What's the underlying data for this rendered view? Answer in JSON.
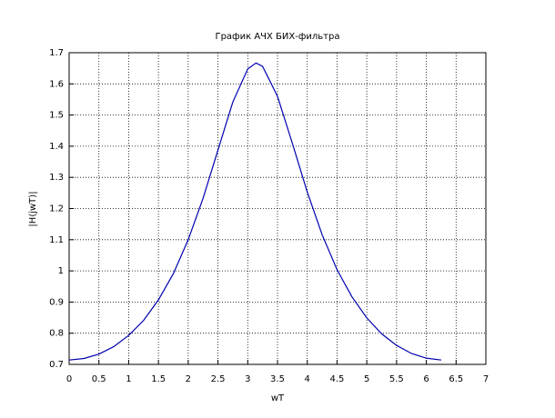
{
  "chart_data": {
    "type": "line",
    "title": "График АЧХ БИХ-фильтра",
    "x_label": "wT",
    "y_label": "|H(jwT)|",
    "x": [
      0,
      0.25,
      0.5,
      0.75,
      1,
      1.25,
      1.5,
      1.75,
      2,
      2.25,
      2.5,
      2.75,
      3,
      3.14,
      3.25,
      3.5,
      3.75,
      4,
      4.25,
      4.5,
      4.75,
      5,
      5.25,
      5.5,
      5.75,
      6,
      6.25
    ],
    "series": [
      {
        "color": "#0000b0",
        "values": [
          0.714,
          0.719,
          0.733,
          0.757,
          0.793,
          0.841,
          0.907,
          0.991,
          1.1,
          1.233,
          1.388,
          1.542,
          1.648,
          1.667,
          1.656,
          1.56,
          1.409,
          1.253,
          1.116,
          1.004,
          0.917,
          0.849,
          0.798,
          0.761,
          0.735,
          0.72,
          0.714
        ]
      }
    ],
    "xlim": [
      0,
      7
    ],
    "xticks": [
      0,
      0.5,
      1,
      1.5,
      2,
      2.5,
      3,
      3.5,
      4,
      4.5,
      5,
      5.5,
      6,
      6.5,
      7
    ],
    "ylim": [
      0.7,
      1.7
    ],
    "yticks": [
      0.7,
      0.8,
      0.9,
      1,
      1.1,
      1.2,
      1.3,
      1.4,
      1.5,
      1.6,
      1.7
    ],
    "grid": true
  }
}
